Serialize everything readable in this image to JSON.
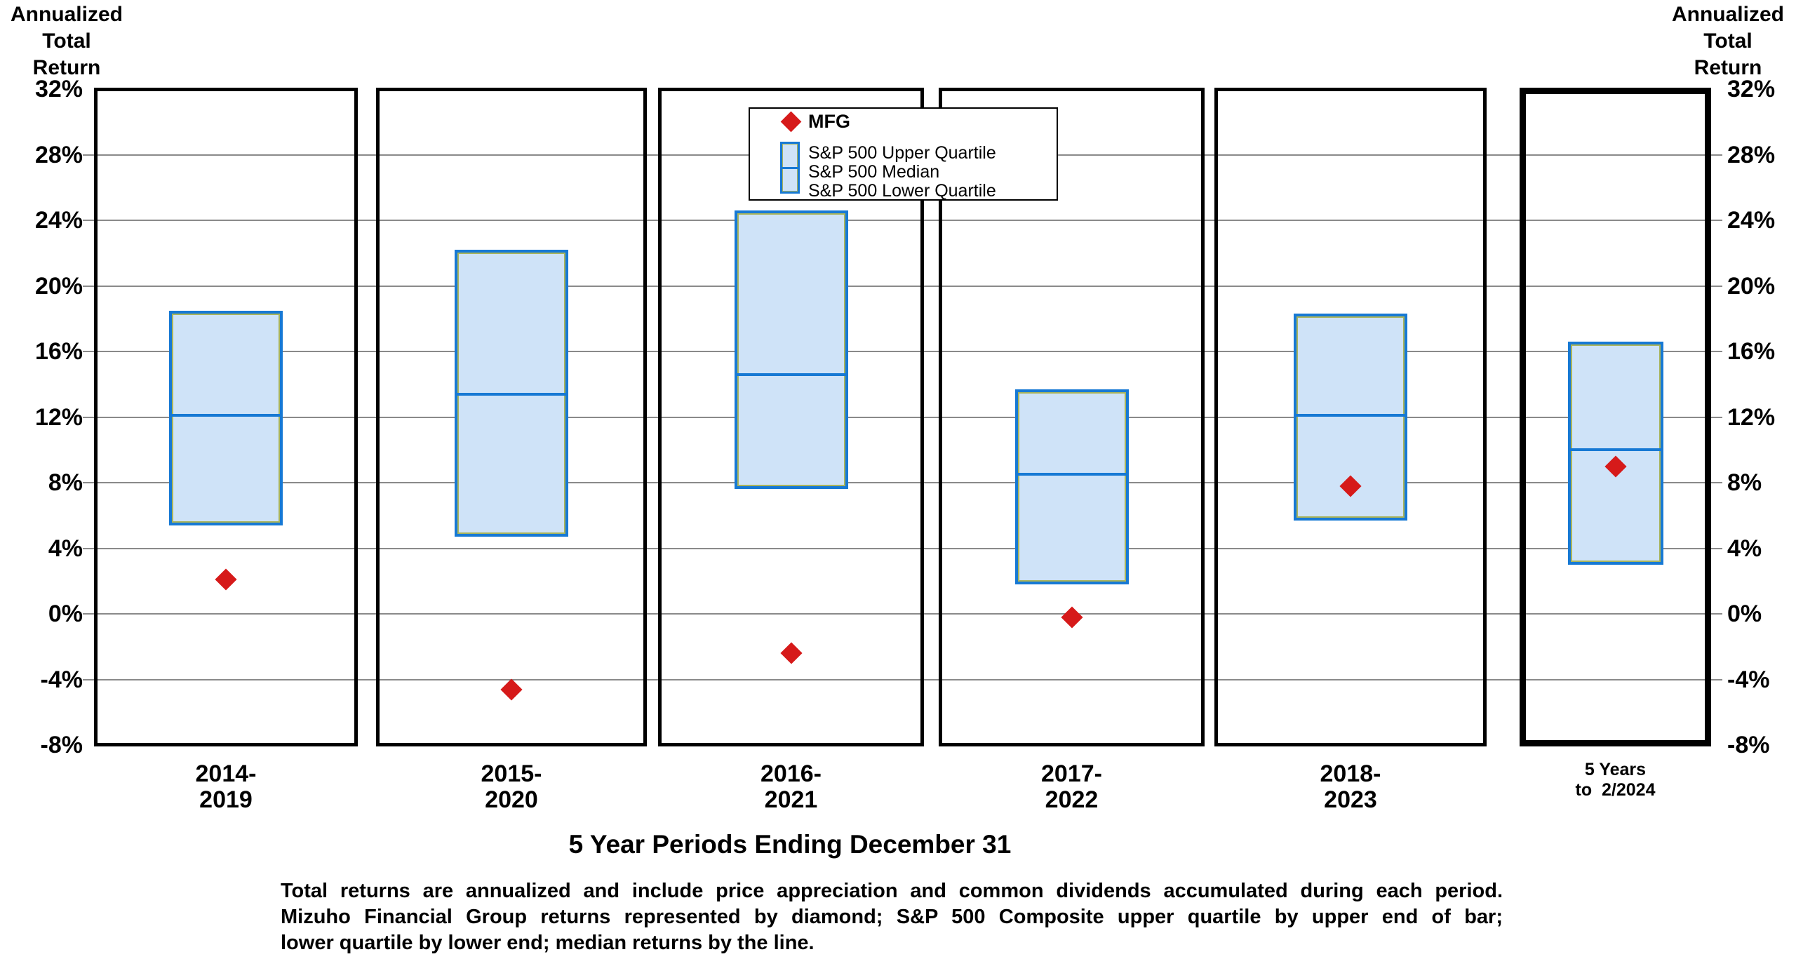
{
  "axis_title_left": {
    "lines": [
      "Annualized",
      "Total",
      "Return"
    ]
  },
  "axis_title_right": {
    "lines": [
      "Annualized",
      "Total",
      "Return"
    ]
  },
  "y_axis": {
    "tick_labels": [
      "32%",
      "28%",
      "24%",
      "20%",
      "16%",
      "12%",
      "8%",
      "4%",
      "0%",
      "-4%",
      "-8%"
    ],
    "tick_values": [
      32,
      28,
      24,
      20,
      16,
      12,
      8,
      4,
      0,
      -4,
      -8
    ]
  },
  "legend": {
    "mfg_label": "MFG",
    "items": [
      "S&P 500 Upper Quartile",
      "S&P 500 Median",
      "S&P 500 Lower Quartile"
    ]
  },
  "x_axis_title": "5 Year Periods Ending December 31",
  "footnote_lines": [
    "Total returns are annualized and include price appreciation and common dividends accumulated during each period.",
    "Mizuho Financial Group returns represented by diamond; S&P 500 Composite upper quartile by upper end of bar;",
    "lower quartile by lower end; median returns by the line."
  ],
  "colors": {
    "bar_fill": "#cfe3f8",
    "bar_border": "#1779d4",
    "bar_inner_outline": "#a9b45c",
    "median_line": "#1779d4",
    "diamond_red": "#d61a1a",
    "gridline_gray": "#8a8a8a",
    "panel_border_black": "#000000"
  },
  "chart_data": {
    "type": "bar",
    "subtype": "quartile-range-bars-with-diamond-markers",
    "categories": [
      [
        "2014-",
        "2019"
      ],
      [
        "2015-",
        "2020"
      ],
      [
        "2016-",
        "2021"
      ],
      [
        "2017-",
        "2022"
      ],
      [
        "2018-",
        "2023"
      ],
      [
        "5 Years",
        "to  2/2024"
      ]
    ],
    "series": [
      {
        "name": "S&P 500 Upper Quartile",
        "values": [
          18.5,
          22.2,
          24.6,
          13.7,
          18.3,
          16.6
        ]
      },
      {
        "name": "S&P 500 Median",
        "values": [
          12.1,
          13.4,
          14.6,
          8.5,
          12.1,
          10.0
        ]
      },
      {
        "name": "S&P 500 Lower Quartile",
        "values": [
          5.4,
          4.7,
          7.6,
          1.8,
          5.7,
          3.0
        ]
      },
      {
        "name": "MFG",
        "values": [
          2.1,
          -4.6,
          -2.4,
          -0.2,
          7.8,
          9.0
        ]
      }
    ],
    "title": "",
    "xlabel": "5 Year Periods Ending December 31",
    "ylabel": "Annualized Total Return",
    "ylim": [
      -8,
      32
    ],
    "ytick_step": 4,
    "grid": true,
    "legend_position": "top-center",
    "highlight_last_panel": true
  }
}
